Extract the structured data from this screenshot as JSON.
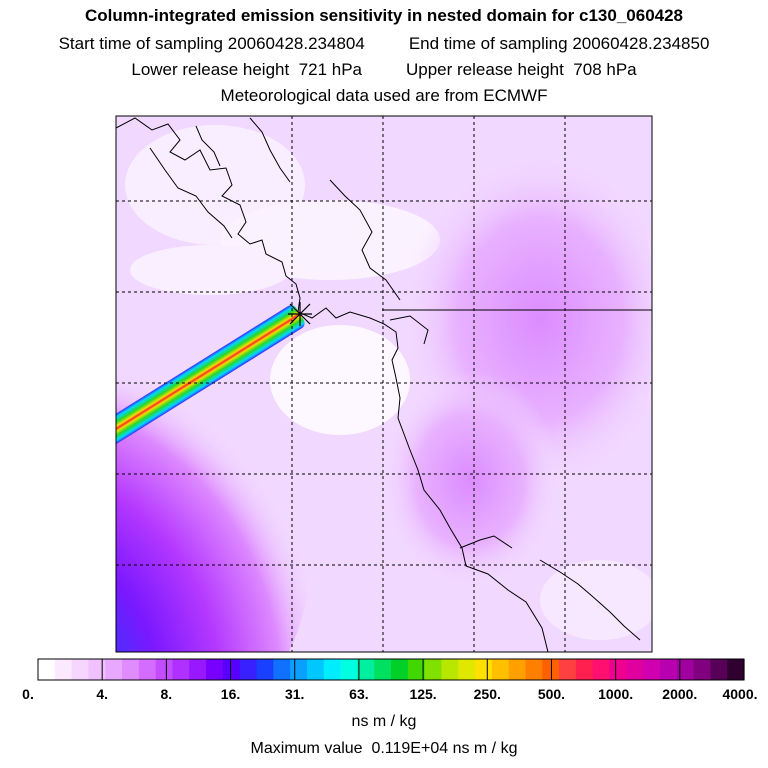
{
  "header": {
    "title": "Column-integrated emission sensitivity in nested domain for c130_060428",
    "start_label": "Start time of sampling",
    "start_value": "20060428.234804",
    "end_label": "End time of sampling",
    "end_value": "20060428.234850",
    "lower_label": "Lower release height",
    "lower_value": "721 hPa",
    "upper_label": "Upper release height",
    "upper_value": "708 hPa",
    "met_note": "Meteorological data used are from ECMWF"
  },
  "colorbar": {
    "ticks": [
      "0.",
      "4.",
      "8.",
      "16.",
      "31.",
      "63.",
      "125.",
      "250.",
      "500.",
      "1000.",
      "2000.",
      "4000."
    ],
    "colors": [
      "#ffffff",
      "#fbeaff",
      "#f6d6ff",
      "#f0c0ff",
      "#e9a8ff",
      "#e08cff",
      "#d46cff",
      "#c44cff",
      "#b030ff",
      "#9818ff",
      "#7800ff",
      "#5800ff",
      "#3820ff",
      "#1a40ff",
      "#1070ff",
      "#0aa0ff",
      "#00c8ff",
      "#00ecff",
      "#00ffe0",
      "#00f0a0",
      "#00e060",
      "#00d028",
      "#40d800",
      "#80e000",
      "#b8e800",
      "#e0e800",
      "#ffe000",
      "#ffc000",
      "#ffa000",
      "#ff8000",
      "#ff6000",
      "#ff4040",
      "#ff2050",
      "#ff1070",
      "#f00090",
      "#e000a0",
      "#d000b0",
      "#b800b0",
      "#a000a0",
      "#800080",
      "#580058",
      "#300030"
    ],
    "unit": "ns m / kg"
  },
  "footer": {
    "max_label": "Maximum value",
    "max_value": "0.119E+04 ns m / kg"
  }
}
